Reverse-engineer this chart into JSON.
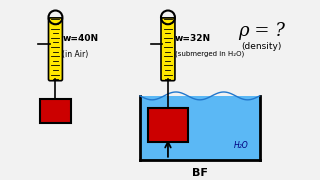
{
  "bg_color": "#f2f2f2",
  "spring_color": "#FFE800",
  "box_color": "#CC0000",
  "water_color": "#5BB8F5",
  "text_color": "#000000",
  "label1_weight": "w=40N",
  "label1_sub": "(in Air)",
  "label2_weight": "w=32N",
  "label2_sub": "(submerged in H₂O)",
  "rho_label": "ρ = ?",
  "density_label": "(density)",
  "bf_label": "BF",
  "h2o_label": "H₂O"
}
